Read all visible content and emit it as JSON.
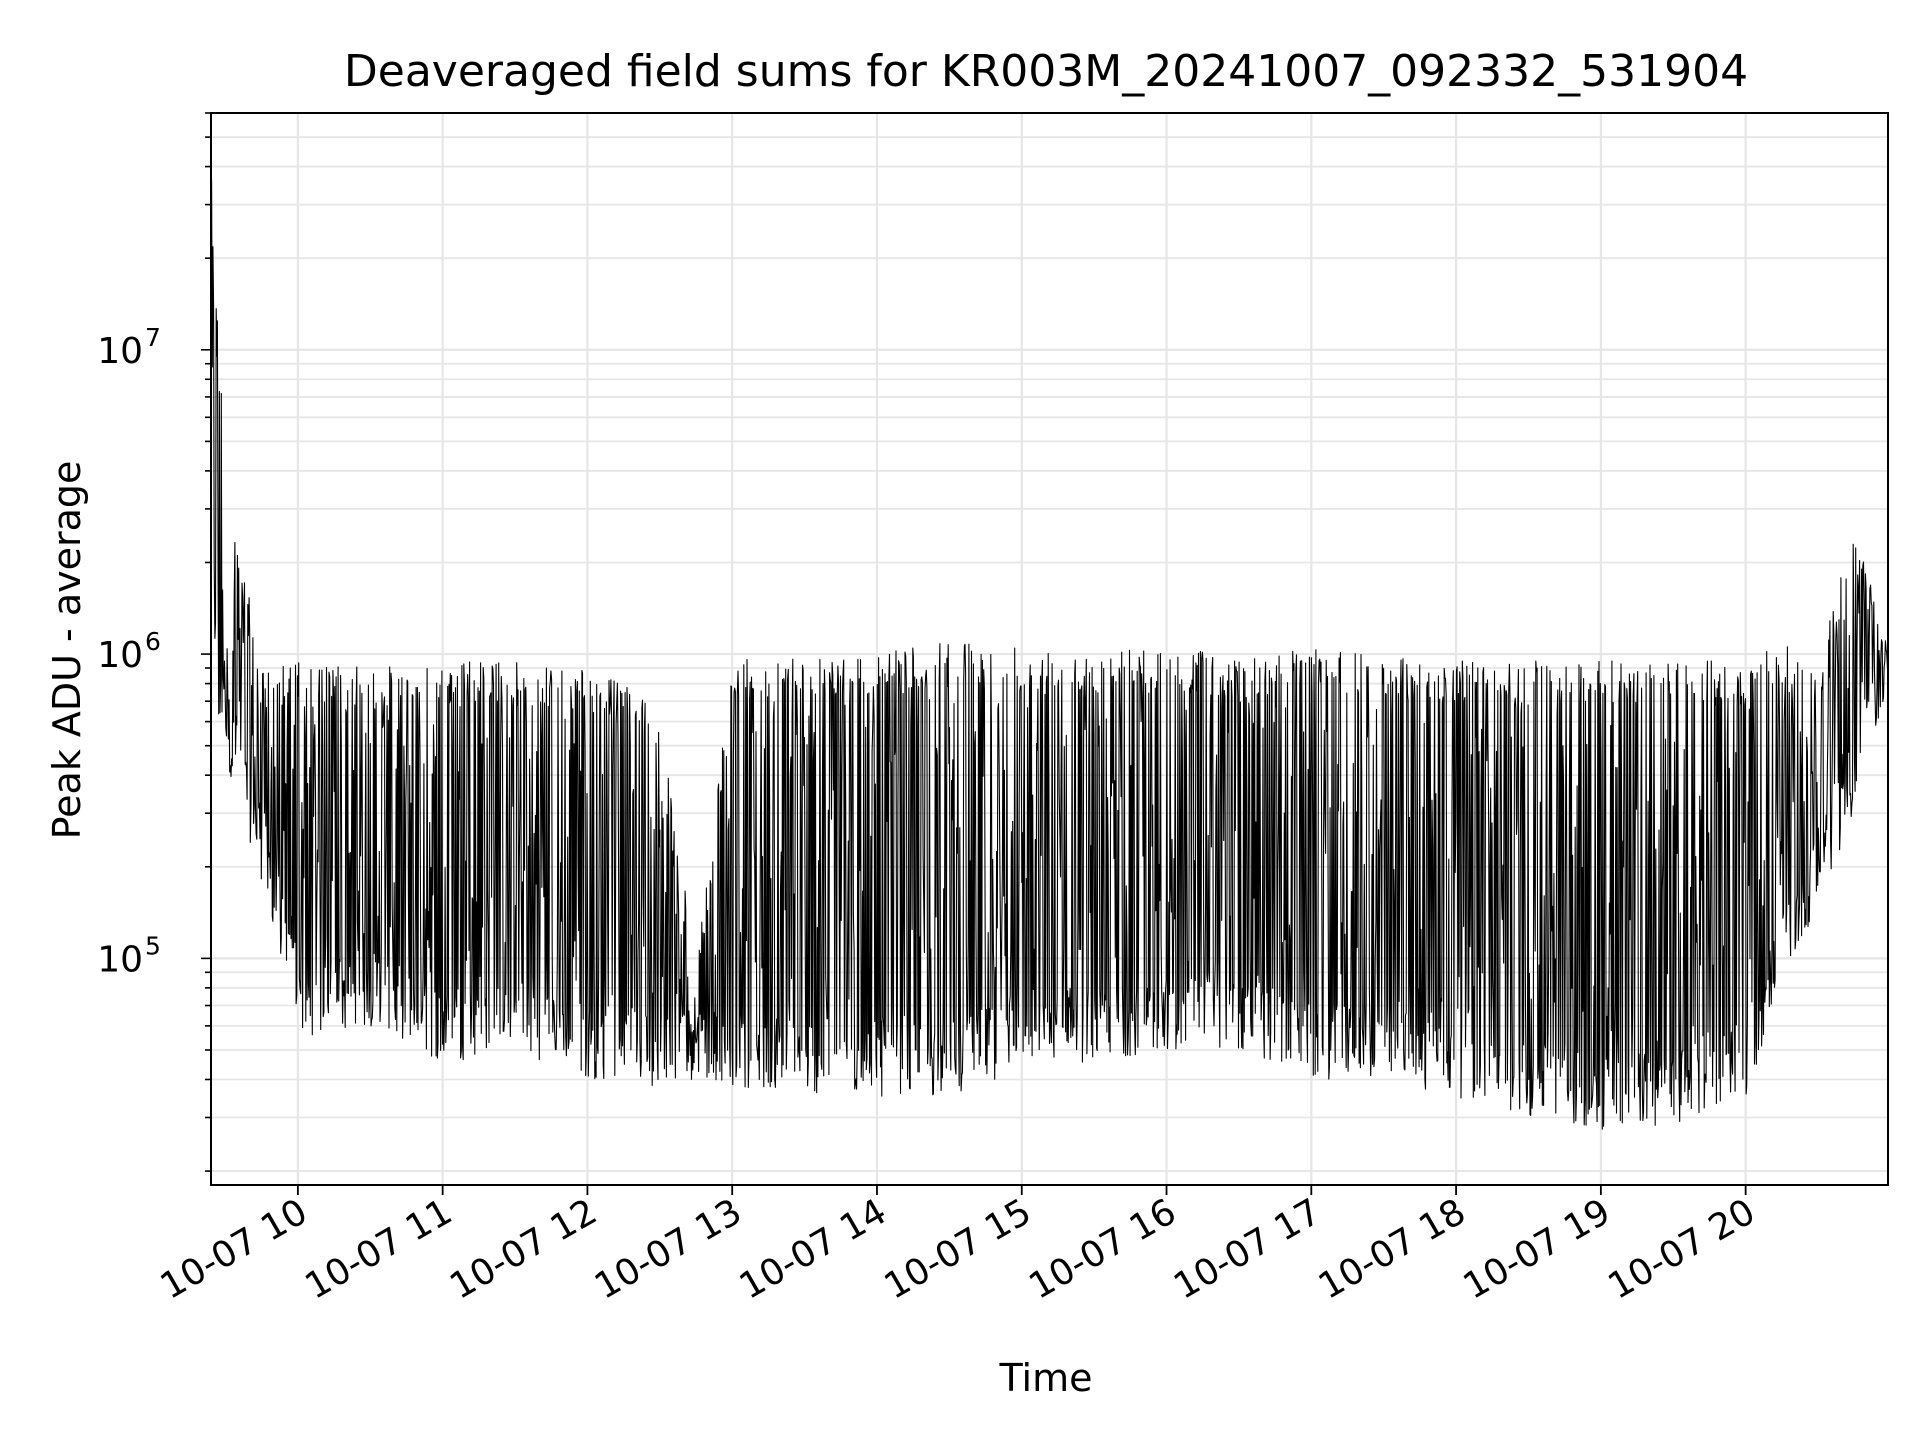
{
  "chart_data": {
    "type": "line",
    "title": "Deaveraged field sums for KR003M_20241007_092332_531904",
    "xlabel": "Time",
    "ylabel": "Peak ADU - average",
    "yscale": "log",
    "ylim": [
      18000,
      60000000
    ],
    "xlim": [
      "2024-10-07 09:24",
      "2024-10-07 20:59"
    ],
    "grid": true,
    "line_color": "#000000",
    "grid_color": "#e6e6e6",
    "x_ticks": [
      {
        "t": "2024-10-07 10:00",
        "label": "10-07 10"
      },
      {
        "t": "2024-10-07 11:00",
        "label": "10-07 11"
      },
      {
        "t": "2024-10-07 12:00",
        "label": "10-07 12"
      },
      {
        "t": "2024-10-07 13:00",
        "label": "10-07 13"
      },
      {
        "t": "2024-10-07 14:00",
        "label": "10-07 14"
      },
      {
        "t": "2024-10-07 15:00",
        "label": "10-07 15"
      },
      {
        "t": "2024-10-07 16:00",
        "label": "10-07 16"
      },
      {
        "t": "2024-10-07 17:00",
        "label": "10-07 17"
      },
      {
        "t": "2024-10-07 18:00",
        "label": "10-07 18"
      },
      {
        "t": "2024-10-07 19:00",
        "label": "10-07 19"
      },
      {
        "t": "2024-10-07 20:00",
        "label": "10-07 20"
      }
    ],
    "y_ticks": [
      {
        "value": 100000,
        "base": "10",
        "exp": "5"
      },
      {
        "value": 1000000,
        "base": "10",
        "exp": "6"
      },
      {
        "value": 10000000,
        "base": "10",
        "exp": "7"
      }
    ],
    "series": [
      {
        "envelope": [
          {
            "t": "2024-10-07 09:24",
            "high": 40000000,
            "low": 600000
          },
          {
            "t": "2024-10-07 09:30",
            "high": 4200000,
            "low": 450000
          },
          {
            "t": "2024-10-07 09:45",
            "high": 900000,
            "low": 180000
          },
          {
            "t": "2024-10-07 10:00",
            "high": 950000,
            "low": 55000
          },
          {
            "t": "2024-10-07 10:30",
            "high": 900000,
            "low": 60000
          },
          {
            "t": "2024-10-07 11:00",
            "high": 950000,
            "low": 45000
          },
          {
            "t": "2024-10-07 11:30",
            "high": 950000,
            "low": 50000
          },
          {
            "t": "2024-10-07 12:00",
            "high": 900000,
            "low": 40000
          },
          {
            "t": "2024-10-07 12:30",
            "high": 700000,
            "low": 38000
          },
          {
            "t": "2024-10-07 12:45",
            "high": 90000,
            "low": 40000
          },
          {
            "t": "2024-10-07 13:00",
            "high": 950000,
            "low": 38000
          },
          {
            "t": "2024-10-07 13:30",
            "high": 1000000,
            "low": 36000
          },
          {
            "t": "2024-10-07 14:00",
            "high": 1000000,
            "low": 35000
          },
          {
            "t": "2024-10-07 14:30",
            "high": 1100000,
            "low": 35000
          },
          {
            "t": "2024-10-07 14:50",
            "high": 1150000,
            "low": 40000
          },
          {
            "t": "2024-10-07 15:00",
            "high": 1050000,
            "low": 45000
          },
          {
            "t": "2024-10-07 15:30",
            "high": 1050000,
            "low": 45000
          },
          {
            "t": "2024-10-07 16:00",
            "high": 1050000,
            "low": 50000
          },
          {
            "t": "2024-10-07 16:30",
            "high": 1000000,
            "low": 50000
          },
          {
            "t": "2024-10-07 17:00",
            "high": 1050000,
            "low": 40000
          },
          {
            "t": "2024-10-07 17:30",
            "high": 1000000,
            "low": 40000
          },
          {
            "t": "2024-10-07 18:00",
            "high": 950000,
            "low": 35000
          },
          {
            "t": "2024-10-07 18:30",
            "high": 950000,
            "low": 30000
          },
          {
            "t": "2024-10-07 19:00",
            "high": 950000,
            "low": 27000
          },
          {
            "t": "2024-10-07 19:30",
            "high": 950000,
            "low": 28000
          },
          {
            "t": "2024-10-07 20:00",
            "high": 950000,
            "low": 35000
          },
          {
            "t": "2024-10-07 20:15",
            "high": 1100000,
            "low": 80000
          },
          {
            "t": "2024-10-07 20:30",
            "high": 900000,
            "low": 150000
          },
          {
            "t": "2024-10-07 20:45",
            "high": 2800000,
            "low": 300000
          },
          {
            "t": "2024-10-07 20:59",
            "high": 1000000,
            "low": 800000
          }
        ]
      }
    ]
  }
}
